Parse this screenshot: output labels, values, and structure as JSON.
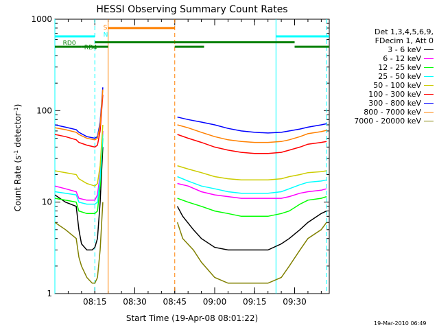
{
  "chart_data": {
    "type": "line",
    "title": "HESSI Observing Summary Count Rates",
    "xlabel": "Start Time (19-Apr-08 08:01:22)",
    "ylabel_main": "Count Rate (s",
    "ylabel_sup1": "-1",
    "ylabel_mid": " detector",
    "ylabel_sup2": "-1",
    "ylabel_end": ")",
    "x_units": "minutes after 08:00 UT",
    "xlim": [
      0,
      103
    ],
    "ylim": [
      1,
      1000
    ],
    "yscale": "log",
    "x_ticks": [
      {
        "x": 15,
        "label": "08:15"
      },
      {
        "x": 30,
        "label": "08:30"
      },
      {
        "x": 45,
        "label": "08:45"
      },
      {
        "x": 60,
        "label": "09:00"
      },
      {
        "x": 75,
        "label": "09:15"
      },
      {
        "x": 90,
        "label": "09:30"
      }
    ],
    "y_ticks": [
      {
        "y": 1,
        "label": "1"
      },
      {
        "y": 10,
        "label": "10"
      },
      {
        "y": 100,
        "label": "100"
      },
      {
        "y": 1000,
        "label": "1000"
      }
    ],
    "legend_header": [
      "Det 1,3,4,5,6,9,",
      "FDecim 1, Att 0"
    ],
    "legend_placement": "right",
    "series": [
      {
        "name": "3 - 6 keV",
        "color": "#000000",
        "segments": [
          {
            "x": [
              0,
              4,
              8,
              9,
              10,
              12,
              14,
              15,
              16,
              17,
              18
            ],
            "y": [
              12,
              10,
              9,
              5,
              3.5,
              3,
              3,
              3.2,
              4,
              10,
              40
            ]
          },
          {
            "x": [
              46,
              48,
              52,
              55,
              60,
              65,
              70,
              75,
              80,
              85,
              88,
              92,
              95,
              100,
              102
            ],
            "y": [
              9,
              7,
              5,
              4,
              3.2,
              3,
              3,
              3,
              3,
              3.5,
              4,
              5,
              6,
              7.5,
              8
            ]
          }
        ]
      },
      {
        "name": "6 - 12 keV",
        "color": "#ff00ff",
        "segments": [
          {
            "x": [
              0,
              4,
              8,
              9,
              12,
              15,
              16,
              17,
              18
            ],
            "y": [
              15,
              14,
              13,
              11,
              10.5,
              10.5,
              12,
              20,
              60
            ]
          },
          {
            "x": [
              46,
              50,
              55,
              60,
              65,
              70,
              75,
              80,
              85,
              88,
              92,
              95,
              100,
              102
            ],
            "y": [
              16,
              15,
              13,
              12,
              11.5,
              11,
              11,
              11,
              11,
              11.5,
              12.5,
              13,
              13.5,
              14
            ]
          }
        ]
      },
      {
        "name": "12 - 25 keV",
        "color": "#00ff00",
        "segments": [
          {
            "x": [
              0,
              4,
              8,
              9,
              12,
              15,
              16,
              17,
              18
            ],
            "y": [
              11,
              10.5,
              10,
              8,
              7.5,
              7.5,
              8,
              15,
              50
            ]
          },
          {
            "x": [
              46,
              50,
              55,
              60,
              65,
              70,
              75,
              80,
              85,
              88,
              92,
              95,
              100,
              102
            ],
            "y": [
              11,
              10,
              9,
              8,
              7.5,
              7,
              7,
              7,
              7.5,
              8,
              9.5,
              10.5,
              11,
              11.5
            ]
          }
        ]
      },
      {
        "name": "25 - 50 keV",
        "color": "#00ffff",
        "segments": [
          {
            "x": [
              0,
              4,
              8,
              9,
              12,
              15,
              16,
              17,
              18
            ],
            "y": [
              13,
              12.5,
              12,
              10,
              9.5,
              9.5,
              10,
              18,
              55
            ]
          },
          {
            "x": [
              46,
              50,
              55,
              60,
              65,
              70,
              75,
              80,
              85,
              88,
              92,
              95,
              100,
              102
            ],
            "y": [
              19,
              17,
              15,
              14,
              13,
              12.5,
              12.5,
              12.5,
              13,
              14,
              15.5,
              16.5,
              17,
              17.5
            ]
          }
        ]
      },
      {
        "name": "50 - 100 keV",
        "color": "#cccc00",
        "segments": [
          {
            "x": [
              0,
              4,
              8,
              9,
              12,
              15,
              16,
              17,
              18
            ],
            "y": [
              22,
              21,
              20,
              18,
              16,
              15,
              16,
              25,
              70
            ]
          },
          {
            "x": [
              46,
              50,
              55,
              60,
              65,
              70,
              75,
              80,
              85,
              88,
              92,
              95,
              100,
              102
            ],
            "y": [
              25,
              23,
              21,
              19,
              18,
              17.5,
              17.5,
              17.5,
              18,
              19,
              20,
              21,
              21.5,
              22
            ]
          }
        ]
      },
      {
        "name": "100 - 300 keV",
        "color": "#ff0000",
        "segments": [
          {
            "x": [
              0,
              4,
              8,
              9,
              12,
              15,
              16,
              17,
              18
            ],
            "y": [
              55,
              52,
              48,
              45,
              42,
              40,
              42,
              60,
              150
            ]
          },
          {
            "x": [
              46,
              50,
              55,
              60,
              65,
              70,
              75,
              80,
              85,
              88,
              92,
              95,
              100,
              102
            ],
            "y": [
              55,
              50,
              45,
              40,
              37,
              35,
              34,
              34,
              35,
              37,
              40,
              43,
              45,
              46
            ]
          }
        ]
      },
      {
        "name": "300 - 800 keV",
        "color": "#0000ff",
        "segments": [
          {
            "x": [
              0,
              4,
              8,
              9,
              12,
              15,
              16,
              17,
              18
            ],
            "y": [
              70,
              66,
              62,
              58,
              52,
              50,
              52,
              75,
              180
            ]
          },
          {
            "x": [
              46,
              50,
              55,
              60,
              65,
              70,
              75,
              80,
              85,
              88,
              92,
              95,
              100,
              102
            ],
            "y": [
              85,
              80,
              75,
              70,
              64,
              60,
              58,
              57,
              58,
              60,
              63,
              66,
              70,
              72
            ]
          }
        ]
      },
      {
        "name": "800 - 7000 keV",
        "color": "#ff8000",
        "segments": [
          {
            "x": [
              0,
              4,
              8,
              9,
              12,
              15,
              16,
              17,
              18
            ],
            "y": [
              65,
              62,
              58,
              55,
              50,
              48,
              50,
              70,
              170
            ]
          },
          {
            "x": [
              46,
              50,
              55,
              60,
              65,
              70,
              75,
              80,
              85,
              88,
              92,
              95,
              100,
              102
            ],
            "y": [
              70,
              65,
              58,
              52,
              48,
              46,
              45,
              45,
              46,
              48,
              52,
              56,
              59,
              61
            ]
          }
        ]
      },
      {
        "name": "7000 - 20000 keV",
        "color": "#808000",
        "segments": [
          {
            "x": [
              0,
              4,
              8,
              9,
              10,
              12,
              14,
              15,
              16,
              17,
              18
            ],
            "y": [
              6,
              5,
              4,
              2.5,
              2,
              1.5,
              1.3,
              1.3,
              1.5,
              3,
              10
            ]
          },
          {
            "x": [
              46,
              48,
              52,
              55,
              60,
              65,
              70,
              75,
              80,
              85,
              88,
              92,
              95,
              100,
              102
            ],
            "y": [
              6,
              4,
              3,
              2.2,
              1.5,
              1.3,
              1.3,
              1.3,
              1.3,
              1.5,
              2,
              3,
              4,
              5,
              6
            ]
          }
        ]
      }
    ],
    "flag_bars": [
      {
        "label": "",
        "color": "#00ffff",
        "y": 650,
        "segments": [
          [
            0,
            15
          ],
          [
            83,
            103
          ]
        ]
      },
      {
        "label": "S",
        "color": "#ff8000",
        "y": 800,
        "segments": [
          [
            20,
            45
          ]
        ]
      },
      {
        "label": "N",
        "color": "#00ffff",
        "y": 690,
        "segments": []
      },
      {
        "label": "RD0",
        "color": "#008000",
        "y": 560,
        "segments": [
          [
            15,
            45
          ],
          [
            45,
            56
          ],
          [
            56,
            90
          ]
        ]
      },
      {
        "label": "RD4",
        "color": "#008000",
        "y": 500,
        "segments": [
          [
            0,
            10
          ],
          [
            10,
            20
          ],
          [
            45,
            56
          ],
          [
            90,
            103
          ]
        ]
      }
    ],
    "vertical_markers": [
      {
        "x": 0,
        "color": "#00ffff",
        "style": "solid"
      },
      {
        "x": 15,
        "color": "#00ffff",
        "style": "dashed"
      },
      {
        "x": 20,
        "color": "#ff8000",
        "style": "solid"
      },
      {
        "x": 45,
        "color": "#ff8000",
        "style": "dashed"
      },
      {
        "x": 83,
        "color": "#00ffff",
        "style": "solid"
      },
      {
        "x": 102,
        "color": "#00ffff",
        "style": "dashed"
      }
    ],
    "grid": false
  },
  "footer": {
    "timestamp": "19-Mar-2010 06:49"
  }
}
